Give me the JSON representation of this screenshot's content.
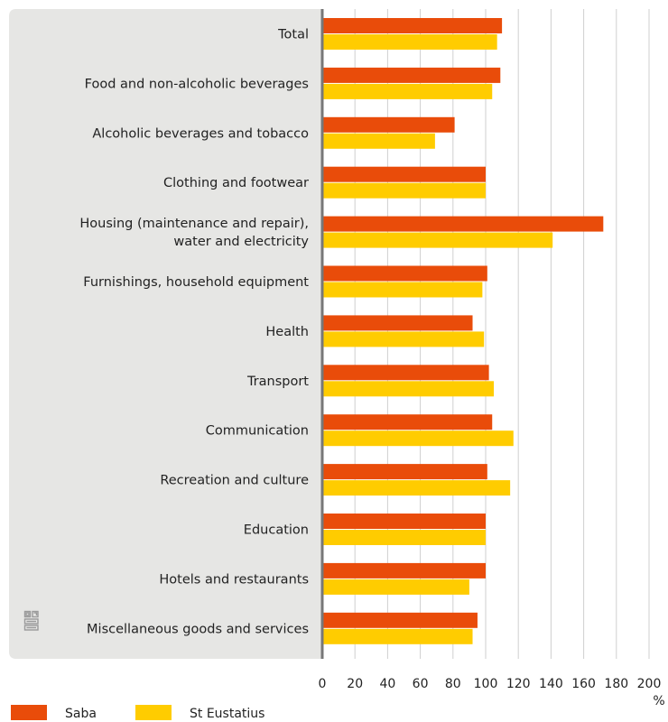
{
  "chart_data": {
    "type": "bar",
    "orientation": "horizontal",
    "categories": [
      [
        "Total"
      ],
      [
        "Food and non-alcoholic beverages"
      ],
      [
        "Alcoholic beverages and tobacco"
      ],
      [
        "Clothing and footwear"
      ],
      [
        "Housing (maintenance and repair),",
        "water and electricity"
      ],
      [
        "Furnishings, household equipment"
      ],
      [
        "Health"
      ],
      [
        "Transport"
      ],
      [
        "Communication"
      ],
      [
        "Recreation and culture"
      ],
      [
        "Education"
      ],
      [
        "Hotels and restaurants"
      ],
      [
        "Miscellaneous goods and services"
      ]
    ],
    "series": [
      {
        "name": "Saba",
        "color": "#e94c0a",
        "values": [
          110,
          109,
          81,
          100,
          172,
          101,
          92,
          102,
          104,
          101,
          100,
          100,
          95
        ]
      },
      {
        "name": "St Eustatius",
        "color": "#ffcc00",
        "values": [
          107,
          104,
          69,
          100,
          141,
          98,
          99,
          105,
          117,
          115,
          100,
          90,
          92
        ]
      }
    ],
    "xticks": [
      0,
      20,
      40,
      60,
      80,
      100,
      120,
      140,
      160,
      180,
      200
    ],
    "xlim": [
      0,
      200
    ],
    "xunit": "%",
    "grid": "vertical",
    "legend": "bottom-left",
    "panel_color": "#e6e6e4",
    "logo": "cbs-logo"
  }
}
